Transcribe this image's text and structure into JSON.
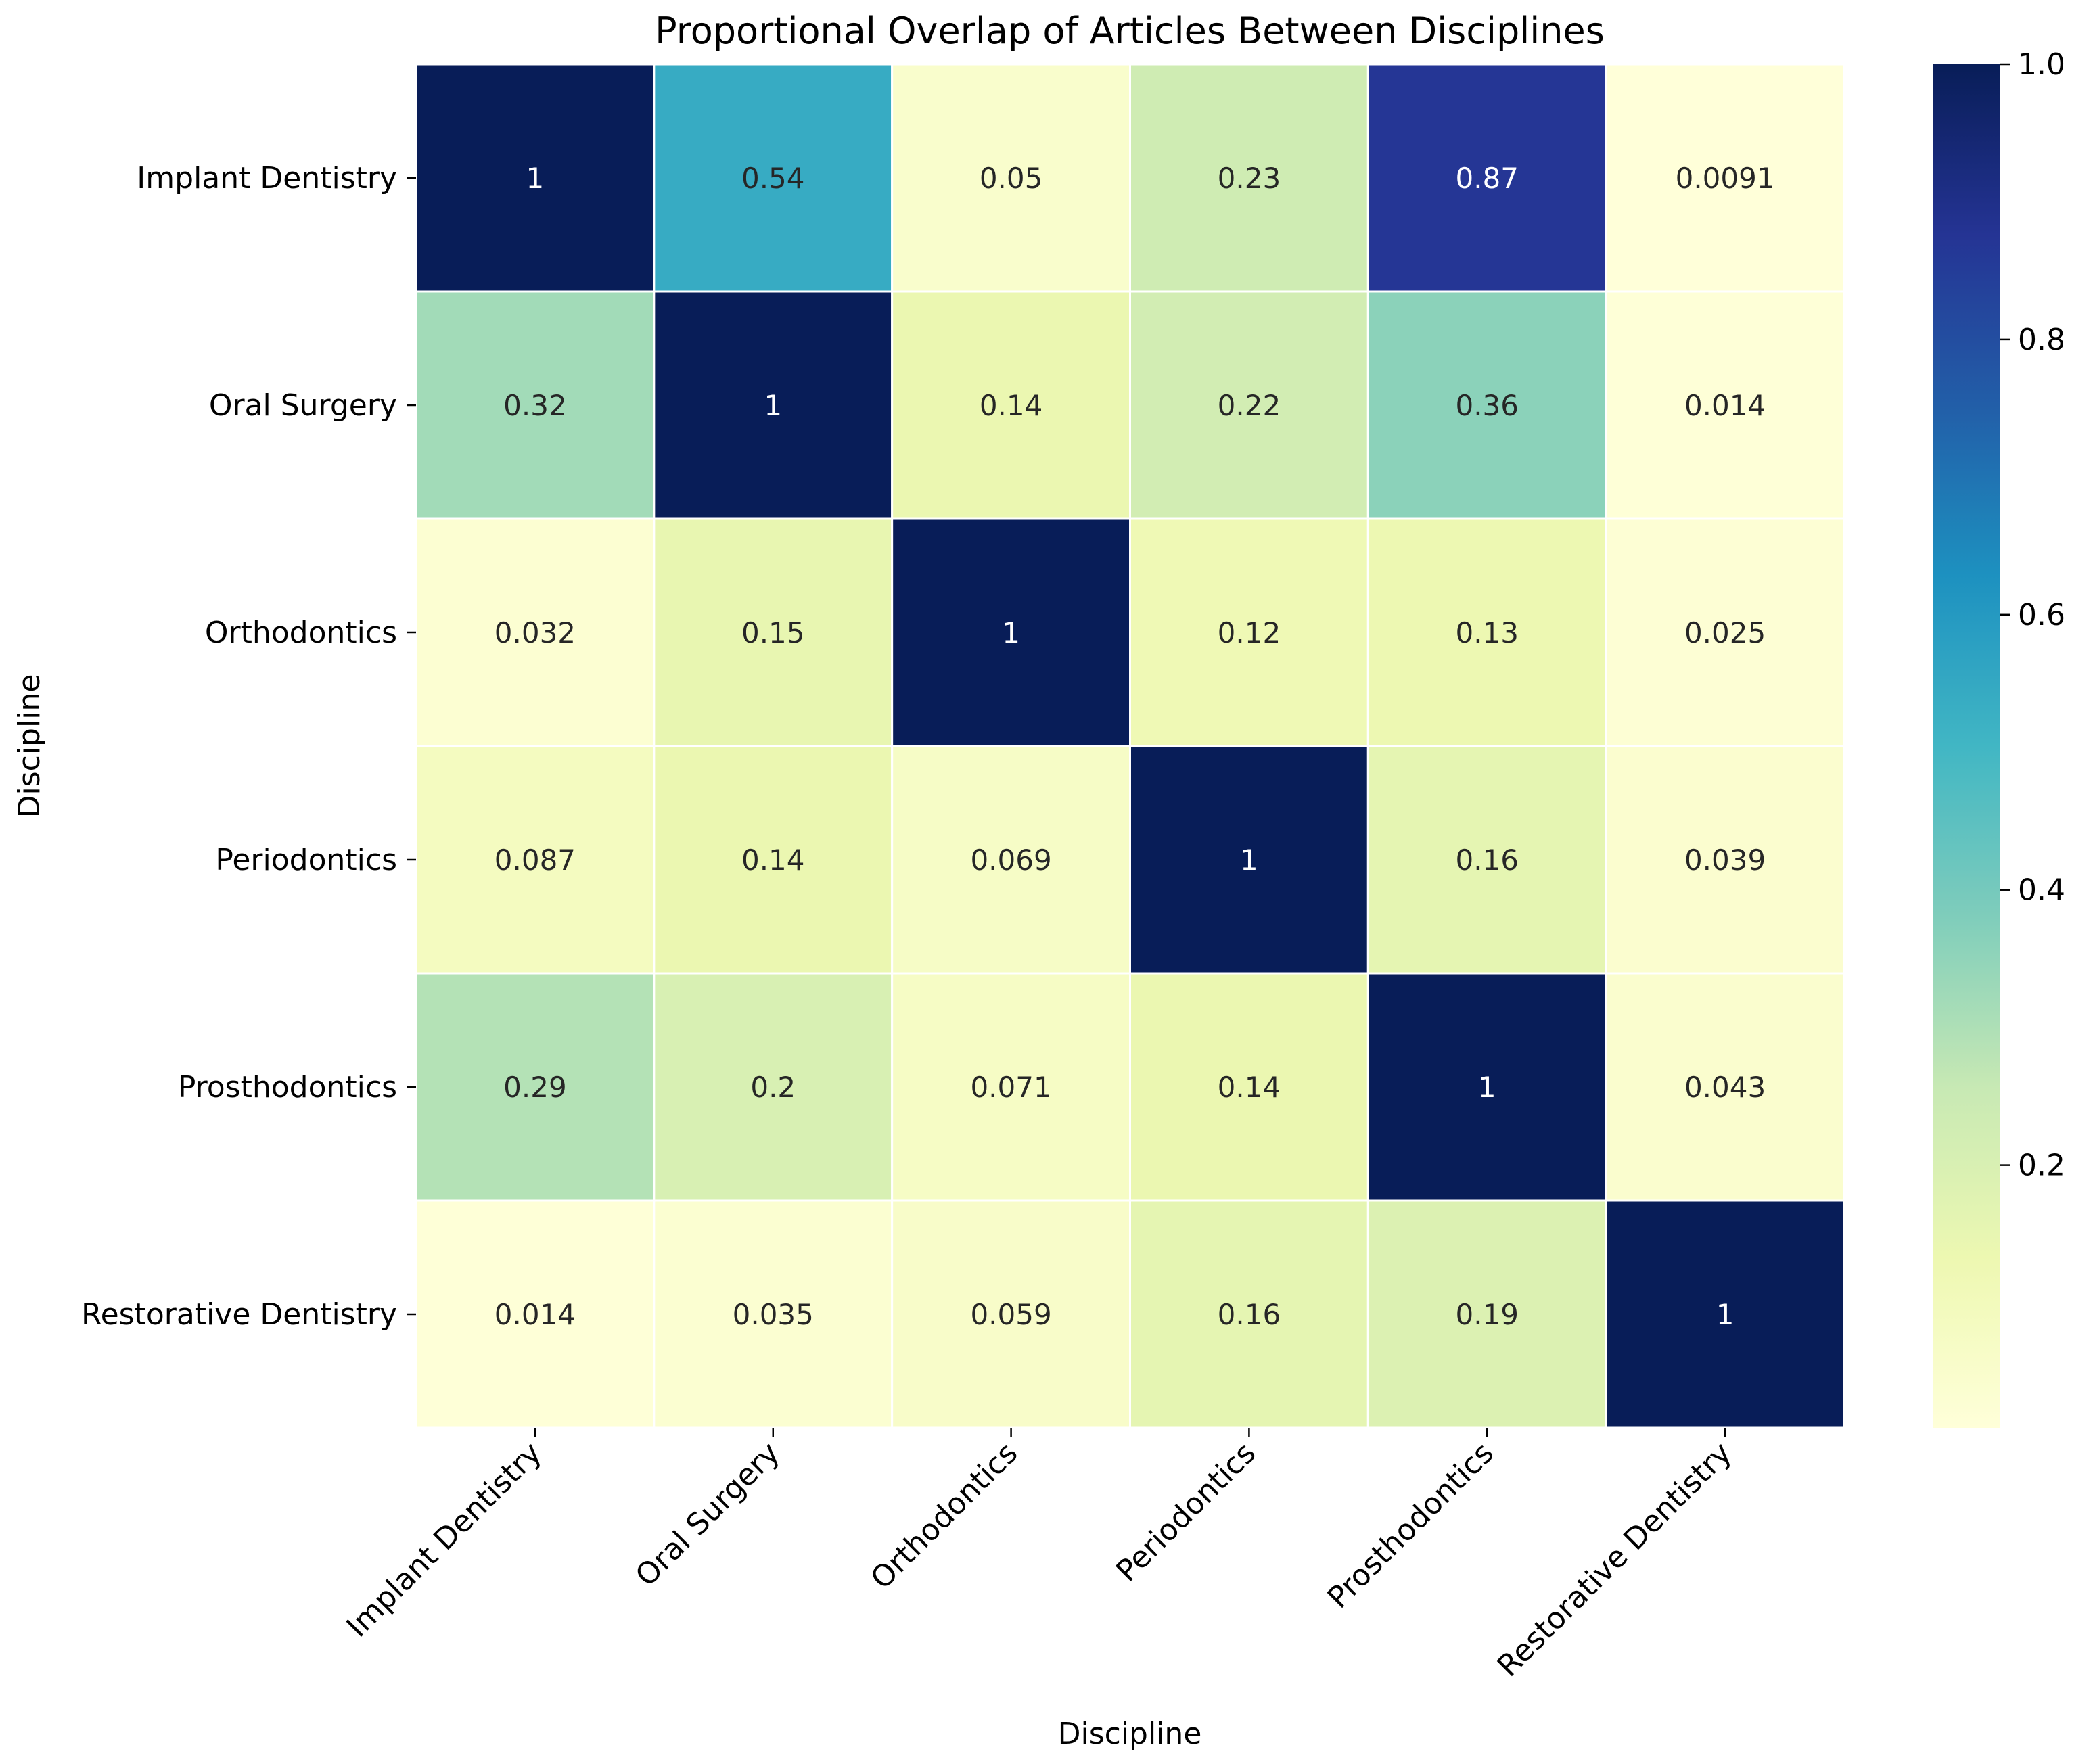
{
  "chart_data": {
    "type": "heatmap",
    "title": "Proportional Overlap of Articles Between Disciplines",
    "xlabel": "Discipline",
    "ylabel": "Discipline",
    "x_categories": [
      "Implant Dentistry",
      "Oral Surgery",
      "Orthodontics",
      "Periodontics",
      "Prosthodontics",
      "Restorative Dentistry"
    ],
    "y_categories": [
      "Implant Dentistry",
      "Oral Surgery",
      "Orthodontics",
      "Periodontics",
      "Prosthodontics",
      "Restorative Dentistry"
    ],
    "values": [
      [
        1,
        0.54,
        0.05,
        0.23,
        0.87,
        0.0091
      ],
      [
        0.32,
        1,
        0.14,
        0.22,
        0.36,
        0.014
      ],
      [
        0.032,
        0.15,
        1,
        0.12,
        0.13,
        0.025
      ],
      [
        0.087,
        0.14,
        0.069,
        1,
        0.16,
        0.039
      ],
      [
        0.29,
        0.2,
        0.071,
        0.14,
        1,
        0.043
      ],
      [
        0.014,
        0.035,
        0.059,
        0.16,
        0.19,
        1
      ]
    ],
    "colormap": "YlGnBu",
    "colormap_stops": [
      "#ffffd9",
      "#edf8b1",
      "#c7e9b4",
      "#7fcdbb",
      "#41b6c4",
      "#1d91c0",
      "#225ea8",
      "#253494",
      "#081d58"
    ],
    "vmin": 0.0091,
    "vmax": 1.0,
    "colorbar_ticks": [
      0.2,
      0.4,
      0.6,
      0.8,
      1.0
    ],
    "colorbar_tick_labels": [
      "0.2",
      "0.4",
      "0.6",
      "0.8",
      "1.0"
    ],
    "annotations": true,
    "grid_line_color": "#ffffff"
  }
}
